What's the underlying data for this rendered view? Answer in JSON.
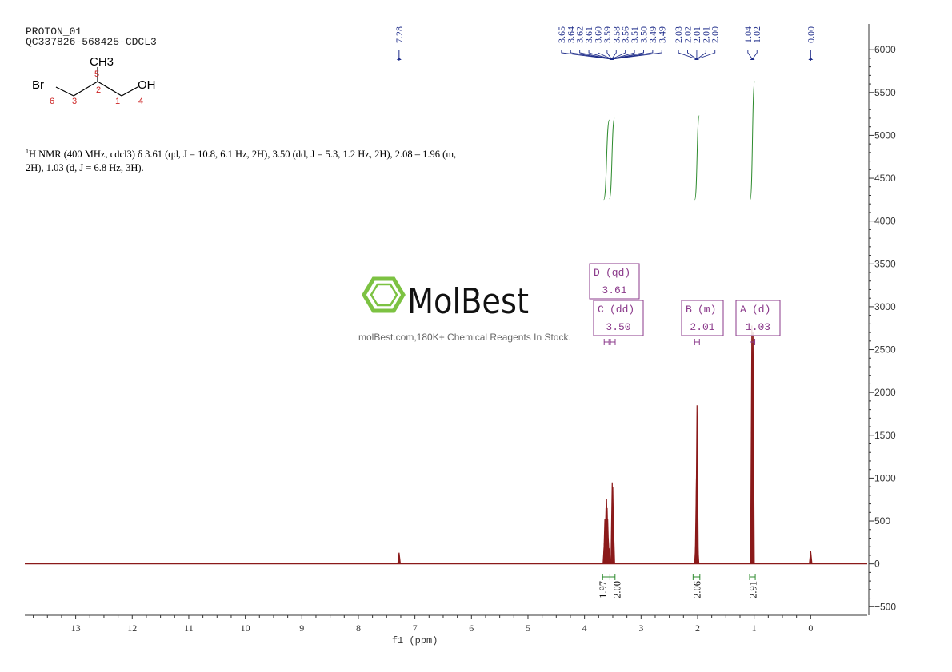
{
  "header": {
    "line1": "PROTON_01",
    "line2": "QC337826-568425-CDCL3"
  },
  "structure": {
    "atoms": [
      "Br",
      "OH",
      "CH3"
    ],
    "numbers": [
      "1",
      "2",
      "3",
      "4",
      "5",
      "6"
    ]
  },
  "description": {
    "nucleus_mark": "1",
    "text": "H NMR (400 MHz, cdcl3) δ 3.61 (qd, J = 10.8, 6.1 Hz, 2H), 3.50 (dd, J = 5.3, 1.2 Hz, 2H), 2.08 – 1.96 (m, 2H), 1.03 (d, J = 6.8 Hz, 3H)."
  },
  "watermark": {
    "brand": "MolBest",
    "tagline": "molBest.com,180K+ Chemical Reagents In Stock."
  },
  "colors": {
    "spectrum": "#8b1a1a",
    "peak_labels": "#1f2d8a",
    "integral": "#2e8b2e",
    "multiplet_box": "#8b3a8b",
    "logo": "#7cc242",
    "axis": "#333333"
  },
  "chart_data": {
    "type": "line",
    "title": "",
    "xlabel": "f1 (ppm)",
    "ylabel": "",
    "x_range": [
      14.0,
      -1.0
    ],
    "xlim": [
      13.9,
      -1.0
    ],
    "ylim": [
      -600,
      6300
    ],
    "x_ticks": [
      13,
      12,
      11,
      10,
      9,
      8,
      7,
      6,
      5,
      4,
      3,
      2,
      1,
      0
    ],
    "y_ticks": [
      6000,
      5500,
      5000,
      4500,
      4000,
      3500,
      3000,
      2500,
      2000,
      1500,
      1000,
      500,
      0,
      -500
    ],
    "y_axis_side": "right",
    "peaks": [
      {
        "ppm": 7.28,
        "height": 130
      },
      {
        "ppm": 3.65,
        "height": 240
      },
      {
        "ppm": 3.64,
        "height": 520
      },
      {
        "ppm": 3.62,
        "height": 650
      },
      {
        "ppm": 3.61,
        "height": 760
      },
      {
        "ppm": 3.6,
        "height": 650
      },
      {
        "ppm": 3.59,
        "height": 520
      },
      {
        "ppm": 3.58,
        "height": 300
      },
      {
        "ppm": 3.56,
        "height": 180
      },
      {
        "ppm": 3.51,
        "height": 950
      },
      {
        "ppm": 3.5,
        "height": 900
      },
      {
        "ppm": 3.49,
        "height": 500
      },
      {
        "ppm": 2.03,
        "height": 260
      },
      {
        "ppm": 2.02,
        "height": 1000
      },
      {
        "ppm": 2.01,
        "height": 1850
      },
      {
        "ppm": 2.0,
        "height": 260
      },
      {
        "ppm": 1.04,
        "height": 2780
      },
      {
        "ppm": 1.02,
        "height": 2700
      },
      {
        "ppm": 0.0,
        "height": 150
      }
    ],
    "peak_labels": [
      "7.28",
      "3.65",
      "3.64",
      "3.62",
      "3.61",
      "3.60",
      "3.59",
      "3.58",
      "3.56",
      "3.51",
      "3.50",
      "3.49",
      "3.49",
      "2.03",
      "2.02",
      "2.01",
      "2.01",
      "2.00",
      "1.04",
      "1.02",
      "0.00"
    ],
    "peak_label_groups": [
      {
        "ppm": 7.28,
        "labels": [
          "7.28"
        ],
        "style": "single"
      },
      {
        "ppm": 3.52,
        "labels": [
          "3.65",
          "3.64",
          "3.62",
          "3.61",
          "3.60",
          "3.59",
          "3.58",
          "3.56",
          "3.51",
          "3.50",
          "3.49",
          "3.49"
        ],
        "style": "group"
      },
      {
        "ppm": 2.015,
        "labels": [
          "2.03",
          "2.02",
          "2.01",
          "2.01",
          "2.00"
        ],
        "style": "group"
      },
      {
        "ppm": 1.03,
        "labels": [
          "1.04",
          "1.02"
        ],
        "style": "pair"
      },
      {
        "ppm": 0.0,
        "labels": [
          "0.00"
        ],
        "style": "single"
      }
    ],
    "integrals": [
      {
        "from": 3.68,
        "to": 3.55,
        "value": "1.97"
      },
      {
        "from": 3.55,
        "to": 3.46,
        "value": "2.00"
      },
      {
        "from": 2.08,
        "to": 1.96,
        "value": "2.06"
      },
      {
        "from": 1.08,
        "to": 0.98,
        "value": "2.91"
      }
    ],
    "multiplets": [
      {
        "letter": "D",
        "type": "(qd)",
        "shift": "3.61",
        "ppm": 3.61
      },
      {
        "letter": "C",
        "type": "(dd)",
        "shift": "3.50",
        "ppm": 3.5
      },
      {
        "letter": "B",
        "type": "(m)",
        "shift": "2.01",
        "ppm": 2.01
      },
      {
        "letter": "A",
        "type": "(d)",
        "shift": "1.03",
        "ppm": 1.03
      }
    ]
  }
}
